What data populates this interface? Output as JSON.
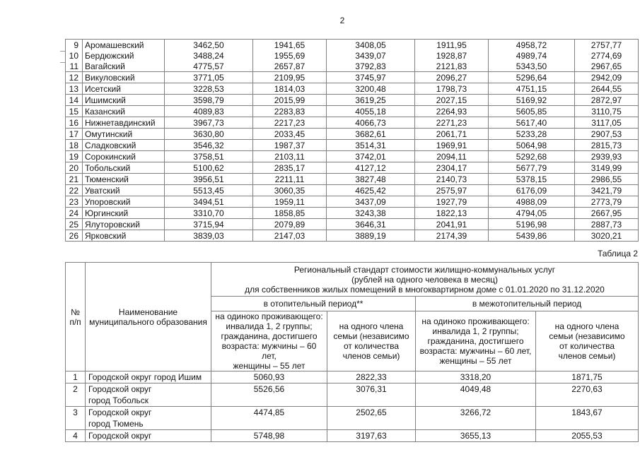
{
  "page": {
    "number": "2"
  },
  "colors": {
    "border": "#808080",
    "text": "#141414",
    "page_bg": "#ffffff"
  },
  "table1": {
    "rows": [
      {
        "num": "9",
        "name": "Аромашевский",
        "values": [
          "3462,50",
          "1941,65",
          "3408,05",
          "1911,95",
          "4958,72",
          "2757,77"
        ]
      },
      {
        "num": "10",
        "name": "Бердюжский",
        "values": [
          "3488,24",
          "1955,69",
          "3439,07",
          "1928,87",
          "4989,74",
          "2774,69"
        ]
      },
      {
        "num": "11",
        "name": "Вагайский",
        "values": [
          "4775,57",
          "2657,87",
          "3792,83",
          "2121,83",
          "5343,50",
          "2967,65"
        ]
      },
      {
        "num": "12",
        "name": "Викуловский",
        "values": [
          "3771,05",
          "2109,95",
          "3745,97",
          "2096,27",
          "5296,64",
          "2942,09"
        ]
      },
      {
        "num": "13",
        "name": "Исетский",
        "values": [
          "3228,53",
          "1814,03",
          "3200,48",
          "1798,73",
          "4751,15",
          "2644,55"
        ]
      },
      {
        "num": "14",
        "name": "Ишимский",
        "values": [
          "3598,79",
          "2015,99",
          "3619,25",
          "2027,15",
          "5169,92",
          "2872,97"
        ]
      },
      {
        "num": "15",
        "name": "Казанский",
        "values": [
          "4089,83",
          "2283,83",
          "4055,18",
          "2264,93",
          "5605,85",
          "3110,75"
        ]
      },
      {
        "num": "16",
        "name": "Нижнетавдинский",
        "values": [
          "3967,73",
          "2217,23",
          "4066,73",
          "2271,23",
          "5617,40",
          "3117,05"
        ]
      },
      {
        "num": "17",
        "name": "Омутинский",
        "values": [
          "3630,80",
          "2033,45",
          "3682,61",
          "2061,71",
          "5233,28",
          "2907,53"
        ]
      },
      {
        "num": "18",
        "name": "Сладковский",
        "values": [
          "3546,32",
          "1987,37",
          "3514,31",
          "1969,91",
          "5064,98",
          "2815,73"
        ]
      },
      {
        "num": "19",
        "name": "Сорокинский",
        "values": [
          "3758,51",
          "2103,11",
          "3742,01",
          "2094,11",
          "5292,68",
          "2939,93"
        ]
      },
      {
        "num": "20",
        "name": "Тобольский",
        "values": [
          "5100,62",
          "2835,17",
          "4127,12",
          "2304,17",
          "5677,79",
          "3149,99"
        ]
      },
      {
        "num": "21",
        "name": "Тюменский",
        "values": [
          "3956,51",
          "2211,11",
          "3827,48",
          "2140,73",
          "5378,15",
          "2986,55"
        ]
      },
      {
        "num": "22",
        "name": "Уватский",
        "values": [
          "5513,45",
          "3060,35",
          "4625,42",
          "2575,97",
          "6176,09",
          "3421,79"
        ]
      },
      {
        "num": "23",
        "name": "Упоровский",
        "values": [
          "3494,51",
          "1959,11",
          "3437,09",
          "1927,79",
          "4988,09",
          "2773,79"
        ]
      },
      {
        "num": "24",
        "name": "Юргинский",
        "values": [
          "3310,70",
          "1858,85",
          "3243,38",
          "1822,13",
          "4794,05",
          "2667,95"
        ]
      },
      {
        "num": "25",
        "name": "Ялуторовский",
        "values": [
          "3715,94",
          "2079,89",
          "3646,31",
          "2041,91",
          "5196,98",
          "2887,73"
        ]
      },
      {
        "num": "26",
        "name": "Ярковский",
        "values": [
          "3839,03",
          "2147,03",
          "3889,19",
          "2174,39",
          "5439,86",
          "3020,21"
        ]
      }
    ]
  },
  "table2": {
    "caption": "Таблица 2",
    "header": {
      "num_lines": [
        "№",
        "п/п"
      ],
      "name": "Наименование муниципального образования",
      "title_lines": [
        "Региональный стандарт стоимости жилищно-коммунальных услуг",
        "(рублей на одного человека в месяц)",
        "для собственников жилых помещений в многоквартирном доме с 01.01.2020 по 31.12.2020"
      ],
      "period_heating": "в отопительный период**",
      "period_nonheating": "в межотопительный период",
      "sub_single_lines": [
        "на одиноко проживающего:",
        "инвалида 1, 2 группы;",
        "гражданина, достигшего",
        "возраста: мужчины – 60 лет,",
        "женщины – 55 лет"
      ],
      "sub_family_lines": [
        "на одного члена",
        "семьи (независимо",
        "от количества",
        "членов семьи)"
      ]
    },
    "rows": [
      {
        "num": "1",
        "name_lines": [
          "Городской округ город Ишим"
        ],
        "values": [
          "5060,93",
          "2822,33",
          "3318,20",
          "1871,75"
        ]
      },
      {
        "num": "2",
        "name_lines": [
          "Городской округ",
          "город Тобольск"
        ],
        "values": [
          "5526,56",
          "3076,31",
          "4049,48",
          "2270,63"
        ]
      },
      {
        "num": "3",
        "name_lines": [
          "Городской округ",
          "город Тюмень"
        ],
        "values": [
          "4474,85",
          "2502,65",
          "3266,72",
          "1843,67"
        ]
      },
      {
        "num": "4",
        "name_lines": [
          "Городской округ"
        ],
        "values": [
          "5748,98",
          "3197,63",
          "3655,13",
          "2055,53"
        ]
      }
    ]
  }
}
